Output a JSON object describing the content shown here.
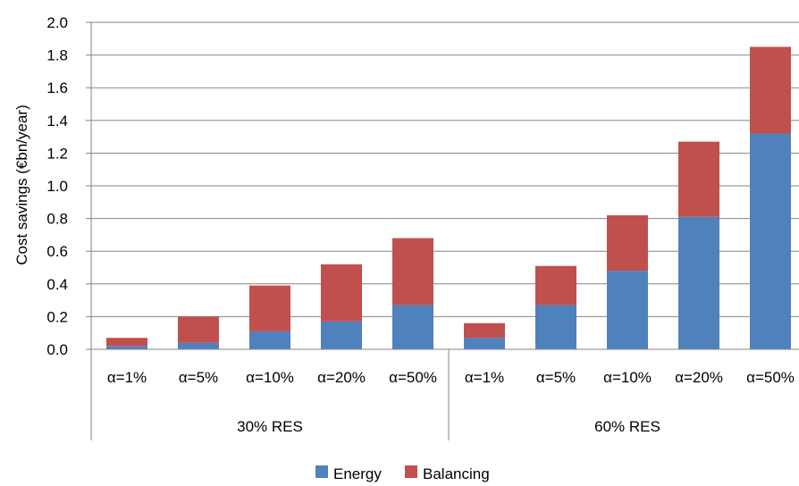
{
  "chart_data": {
    "type": "bar",
    "stacked": true,
    "ylabel": "Cost savings (€bn/year)",
    "ylim": [
      0,
      2.0
    ],
    "yticks": [
      "0.0",
      "0.2",
      "0.4",
      "0.6",
      "0.8",
      "1.0",
      "1.2",
      "1.4",
      "1.6",
      "1.8",
      "2.0"
    ],
    "grid": true,
    "legend": "bottom",
    "groups": [
      {
        "label": "30% RES",
        "categories": [
          "α=1%",
          "α=5%",
          "α=10%",
          "α=20%",
          "α=50%"
        ]
      },
      {
        "label": "60% RES",
        "categories": [
          "α=1%",
          "α=5%",
          "α=10%",
          "α=20%",
          "α=50%"
        ]
      }
    ],
    "series": [
      {
        "name": "Energy",
        "color": "#4f81bd",
        "values": [
          0.02,
          0.04,
          0.11,
          0.17,
          0.27,
          0.07,
          0.27,
          0.48,
          0.81,
          1.32
        ]
      },
      {
        "name": "Balancing",
        "color": "#c0504d",
        "values": [
          0.05,
          0.16,
          0.28,
          0.35,
          0.41,
          0.09,
          0.24,
          0.34,
          0.46,
          0.53
        ]
      }
    ]
  }
}
